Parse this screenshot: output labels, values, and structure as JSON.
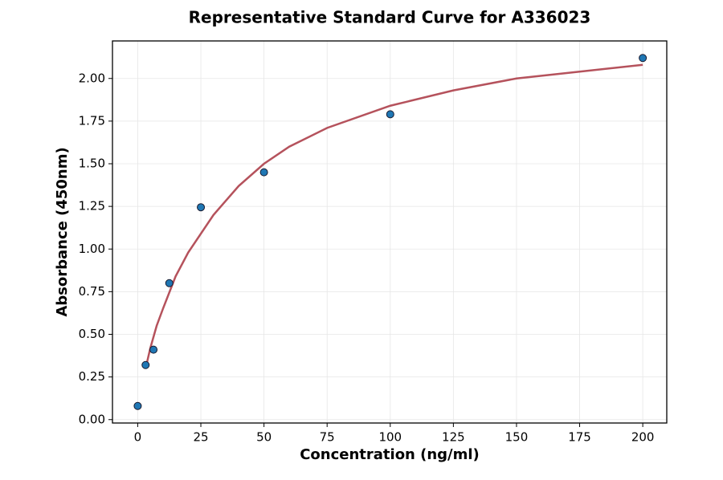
{
  "chart_data": {
    "type": "scatter",
    "title": "Representative Standard Curve for A336023",
    "x_label": "Concentration (ng/ml)",
    "y_label": "Absorbance (450nm)",
    "points": {
      "color": "#1f77b4",
      "edge_color": "#1a1a2e",
      "x": [
        0,
        3.125,
        6.25,
        12.5,
        25,
        50,
        100,
        200
      ],
      "y": [
        0.08,
        0.32,
        0.41,
        0.8,
        1.245,
        1.45,
        1.79,
        2.12
      ]
    },
    "curve": {
      "color": "#b5525c",
      "x": [
        3.125,
        5,
        7.5,
        10,
        15,
        20,
        30,
        40,
        50,
        60,
        75,
        100,
        125,
        150,
        175,
        200
      ],
      "y": [
        0.3,
        0.42,
        0.55,
        0.65,
        0.84,
        0.98,
        1.2,
        1.37,
        1.5,
        1.6,
        1.71,
        1.84,
        1.93,
        2.0,
        2.04,
        2.08
      ]
    },
    "xlim": [
      -10,
      209.5
    ],
    "ylim": [
      -0.02,
      2.22
    ],
    "xticks": [
      0,
      25,
      50,
      75,
      100,
      125,
      150,
      175,
      200
    ],
    "yticks": [
      {
        "value": 0,
        "label": "0.00"
      },
      {
        "value": 0.25,
        "label": "0.25"
      },
      {
        "value": 0.5,
        "label": "0.50"
      },
      {
        "value": 0.75,
        "label": "0.75"
      },
      {
        "value": 1,
        "label": "1.00"
      },
      {
        "value": 1.25,
        "label": "1.25"
      },
      {
        "value": 1.5,
        "label": "1.50"
      },
      {
        "value": 1.75,
        "label": "1.75"
      },
      {
        "value": 2,
        "label": "2.00"
      }
    ],
    "grid": true
  }
}
